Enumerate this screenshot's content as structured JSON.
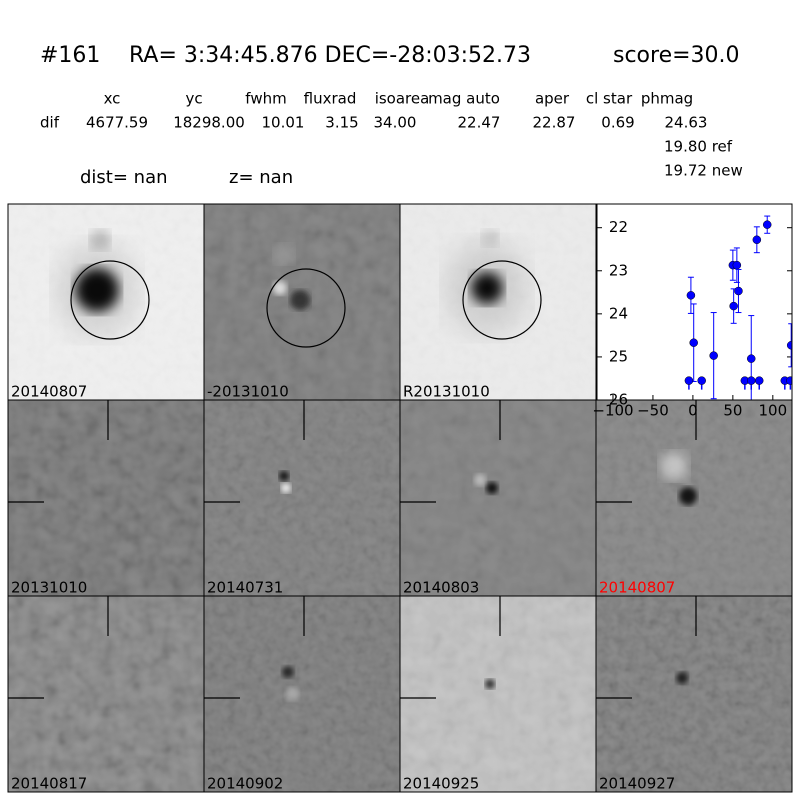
{
  "header": {
    "id": "#161",
    "coords": "RA= 3:34:45.876 DEC=-28:03:52.73",
    "score": "score=30.0"
  },
  "table": {
    "columns": [
      "xc",
      "yc",
      "fwhm",
      "fluxrad",
      "isoarea",
      "mag auto",
      "aper",
      "cl star",
      "phmag"
    ],
    "row_label": "dif",
    "values": [
      "4677.59",
      "18298.00",
      "10.01",
      "3.15",
      "34.00",
      "22.47",
      "22.87",
      "0.69",
      "24.63"
    ],
    "ref": "19.80 ref",
    "new": "19.72 new"
  },
  "info": {
    "dist": "dist=   nan",
    "z": "z=   nan"
  },
  "stamps": [
    {
      "label": "20140807",
      "color": "#000000"
    },
    {
      "label": "-20131010",
      "color": "#000000"
    },
    {
      "label": "R20131010",
      "color": "#000000"
    },
    {
      "label": "20131010",
      "color": "#000000"
    },
    {
      "label": "20140731",
      "color": "#000000"
    },
    {
      "label": "20140803",
      "color": "#000000"
    },
    {
      "label": "20140807",
      "color": "#ff0000"
    },
    {
      "label": "20140817",
      "color": "#000000"
    },
    {
      "label": "20140902",
      "color": "#000000"
    },
    {
      "label": "20140925",
      "color": "#000000"
    },
    {
      "label": "20140927",
      "color": "#000000"
    }
  ],
  "chart_data": {
    "type": "scatter",
    "xlim": [
      -120,
      124
    ],
    "ylim": [
      26,
      21.45
    ],
    "xticks": [
      {
        "value": -100,
        "label": "−100"
      },
      {
        "value": -50,
        "label": "−50"
      },
      0,
      50,
      100
    ],
    "yticks": [
      22,
      23,
      24,
      25,
      26
    ],
    "series": [
      {
        "color": "#0000ff",
        "x": [
          -2.5,
          1,
          26,
          50,
          51,
          55,
          57,
          73,
          80,
          93,
          123
        ],
        "values": [
          23.57,
          24.67,
          24.97,
          22.87,
          23.82,
          22.87,
          23.47,
          25.04,
          22.28,
          21.93,
          24.73
        ],
        "errors": [
          0.42,
          0.9,
          1.0,
          0.35,
          0.4,
          0.4,
          0.5,
          1.0,
          0.3,
          0.2,
          0.5
        ]
      },
      {
        "color": "#0000ff",
        "x": [
          -5,
          11,
          65,
          73,
          83,
          115,
          122
        ],
        "values": [
          25.55,
          25.55,
          25.55,
          25.55,
          25.55,
          25.55,
          25.55
        ],
        "limit": true
      }
    ]
  }
}
